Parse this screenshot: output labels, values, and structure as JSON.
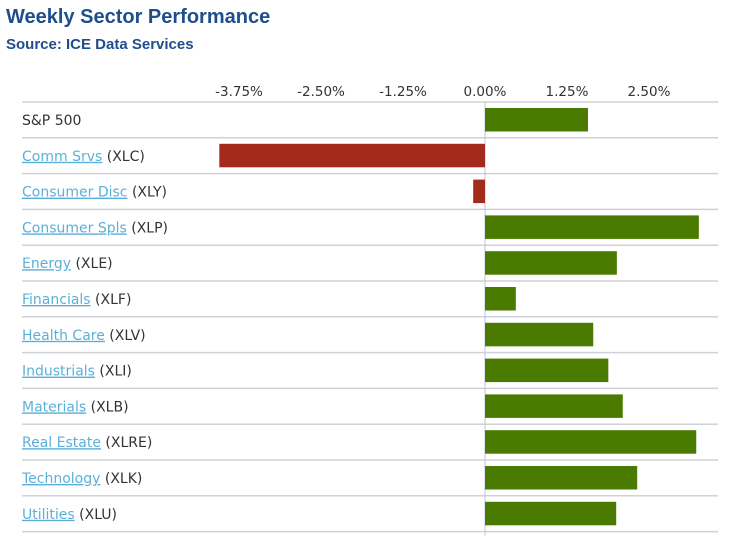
{
  "chart_data": {
    "type": "bar",
    "orientation": "horizontal",
    "title": "Weekly Sector Performance",
    "subtitle": "Source: ICE Data Services",
    "xlim": [
      -4.2,
      3.6
    ],
    "ticks": [
      -3.75,
      -2.5,
      -1.25,
      0,
      1.25,
      2.5
    ],
    "tick_labels": [
      "-3.75%",
      "-2.50%",
      "-1.25%",
      "0.00%",
      "1.25%",
      "2.50%"
    ],
    "categories": [
      {
        "name": "S&P 500",
        "ticker": "",
        "link": false
      },
      {
        "name": "Comm Srvs",
        "ticker": "(XLC)",
        "link": true
      },
      {
        "name": "Consumer Disc",
        "ticker": "(XLY)",
        "link": true
      },
      {
        "name": "Consumer Spls",
        "ticker": "(XLP)",
        "link": true
      },
      {
        "name": "Energy",
        "ticker": "(XLE)",
        "link": true
      },
      {
        "name": "Financials",
        "ticker": "(XLF)",
        "link": true
      },
      {
        "name": "Health Care",
        "ticker": "(XLV)",
        "link": true
      },
      {
        "name": "Industrials",
        "ticker": "(XLI)",
        "link": true
      },
      {
        "name": "Materials",
        "ticker": "(XLB)",
        "link": true
      },
      {
        "name": "Real Estate",
        "ticker": "(XLRE)",
        "link": true
      },
      {
        "name": "Technology",
        "ticker": "(XLK)",
        "link": true
      },
      {
        "name": "Utilities",
        "ticker": "(XLU)",
        "link": true
      }
    ],
    "values": [
      1.57,
      -4.05,
      -0.18,
      3.26,
      2.01,
      0.47,
      1.65,
      1.88,
      2.1,
      3.22,
      2.32,
      2.0
    ],
    "colors": {
      "positive": "#4a7a00",
      "negative": "#a52a1e",
      "grid": "#d0d0d8",
      "zero": "#b8c4dc"
    }
  }
}
